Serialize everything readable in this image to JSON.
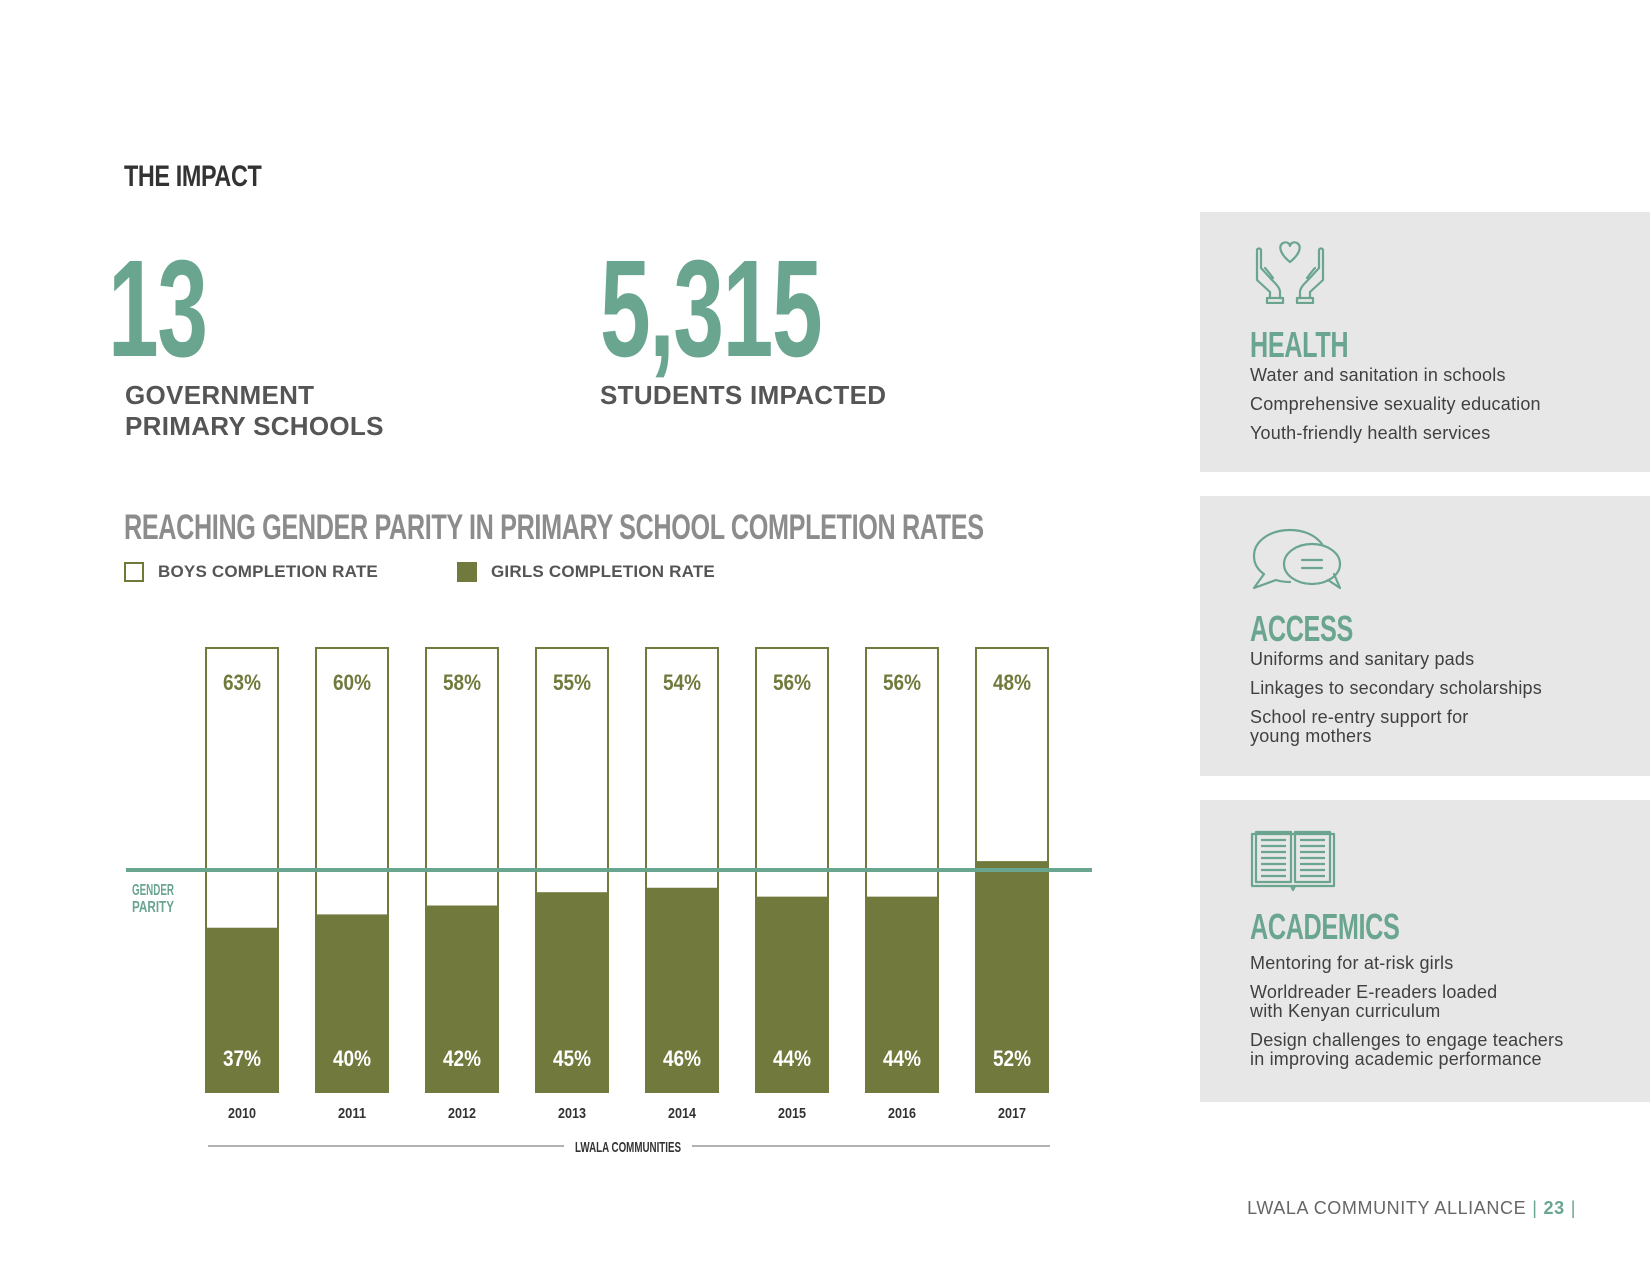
{
  "header": {
    "title": "THE IMPACT"
  },
  "stats": {
    "schools": {
      "value": "13",
      "label": "GOVERNMENT PRIMARY SCHOOLS"
    },
    "students": {
      "value": "5,315",
      "label": "STUDENTS IMPACTED"
    }
  },
  "colors": {
    "teal": "#6aa58f",
    "olive": "#717a3c",
    "grey_panel": "#e7e7e7"
  },
  "chart_data": {
    "type": "bar",
    "title": "REACHING GENDER PARITY IN PRIMARY SCHOOL COMPLETION RATES",
    "xlabel": "LWALA COMMUNITIES",
    "categories": [
      "2010",
      "2011",
      "2012",
      "2013",
      "2014",
      "2015",
      "2016",
      "2017"
    ],
    "series": [
      {
        "name": "BOYS COMPLETION RATE",
        "values": [
          63,
          60,
          58,
          55,
          54,
          56,
          56,
          48
        ],
        "labels": [
          "63%",
          "60%",
          "58%",
          "55%",
          "54%",
          "56%",
          "56%",
          "48%"
        ]
      },
      {
        "name": "GIRLS COMPLETION RATE",
        "values": [
          37,
          40,
          42,
          45,
          46,
          44,
          44,
          52
        ],
        "labels": [
          "37%",
          "40%",
          "42%",
          "45%",
          "46%",
          "44%",
          "44%",
          "52%"
        ]
      }
    ],
    "stacked": true,
    "ylim": [
      0,
      100
    ],
    "reference_line": {
      "value": 50,
      "label_lines": [
        "GENDER",
        "PARITY"
      ]
    },
    "legend": "top-left"
  },
  "panels": [
    {
      "icon": "hands-heart-icon",
      "heading": "HEALTH",
      "items": [
        "Water and sanitation in schools",
        "Comprehensive sexuality education",
        "Youth-friendly health services"
      ]
    },
    {
      "icon": "speech-bubbles-icon",
      "heading": "ACCESS",
      "items": [
        "Uniforms and sanitary pads",
        "Linkages to secondary scholarships",
        "School re-entry support for\nyoung mothers"
      ]
    },
    {
      "icon": "open-book-icon",
      "heading": "ACADEMICS",
      "items": [
        "Mentoring for at-risk girls",
        "Worldreader E-readers loaded\nwith Kenyan curriculum",
        "Design challenges to engage teachers\nin improving academic performance"
      ]
    }
  ],
  "footer": {
    "org": "LWALA COMMUNITY ALLIANCE",
    "page": "23"
  }
}
